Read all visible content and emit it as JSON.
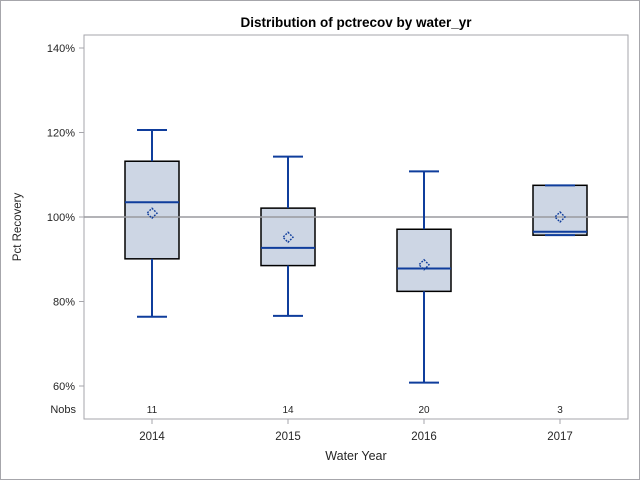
{
  "chart_data": {
    "type": "box",
    "title": "Distribution of pctrecov by water_yr",
    "xlabel": "Water Year",
    "ylabel": "Pct Recovery",
    "nobs_label": "Nobs",
    "categories": [
      "2014",
      "2015",
      "2016",
      "2017"
    ],
    "yticks": [
      140,
      120,
      100,
      80,
      60
    ],
    "ytick_labels": [
      "140%",
      "120%",
      "100%",
      "80%",
      "60%"
    ],
    "ylim": [
      52,
      143
    ],
    "grid": false,
    "legend": "none",
    "reference_line": 100,
    "series": [
      {
        "category": "2014",
        "nobs": "11",
        "min": 76.4,
        "q1": 90.1,
        "median": 103.5,
        "q3": 113.2,
        "max": 120.6,
        "mean": 100.9
      },
      {
        "category": "2015",
        "nobs": "14",
        "min": 76.6,
        "q1": 88.5,
        "median": 92.7,
        "q3": 102.1,
        "max": 114.3,
        "mean": 95.2
      },
      {
        "category": "2016",
        "nobs": "20",
        "min": 60.8,
        "q1": 82.4,
        "median": 87.8,
        "q3": 97.1,
        "max": 110.8,
        "mean": 88.7
      },
      {
        "category": "2017",
        "nobs": "3",
        "min": 95.7,
        "q1": 95.7,
        "median": 96.5,
        "q3": 107.5,
        "max": 107.5,
        "mean": 100.0
      }
    ],
    "colors": {
      "box_fill": "#cdd6e4",
      "box_border": "#000000",
      "line_blue": "#0f3d9c",
      "axis": "#a6a6ab",
      "refline": "#9a9a9f",
      "text": "#262626",
      "title": "#000000",
      "figure_border": "#a6a6ab"
    }
  }
}
